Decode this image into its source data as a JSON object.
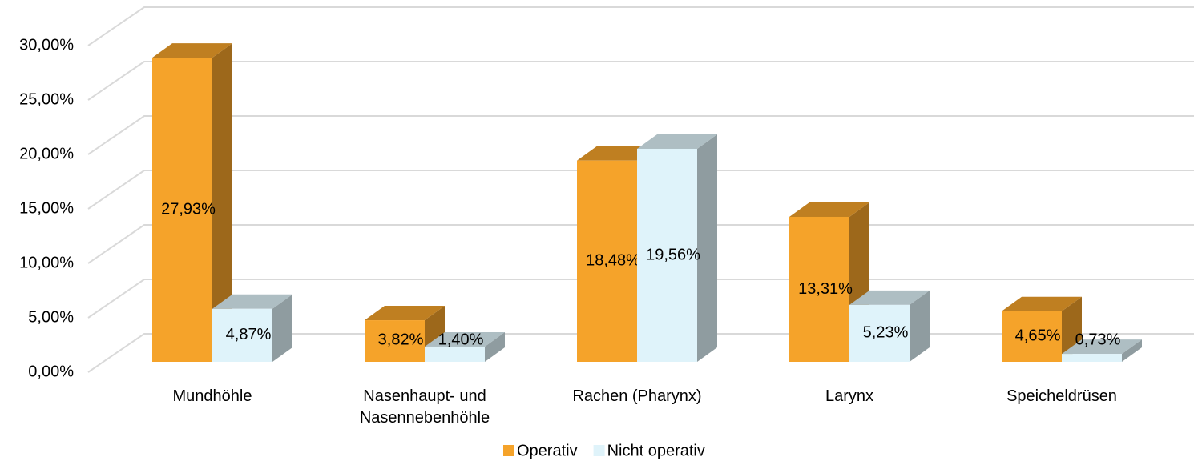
{
  "chart_data": {
    "type": "bar3d",
    "categories": [
      "Mundhöhle",
      "Nasenhaupt- und Nasennebenhöhle",
      "Rachen (Pharynx)",
      "Larynx",
      "Speicheldrüsen"
    ],
    "series": [
      {
        "name": "Operativ",
        "color": "#F5A32A",
        "values": [
          27.93,
          3.82,
          18.48,
          13.31,
          4.65
        ],
        "value_labels": [
          "27,93%",
          "3,82%",
          "18,48%",
          "13,31%",
          "4,65%"
        ]
      },
      {
        "name": "Nicht operativ",
        "color": "#DFF3FA",
        "values": [
          4.87,
          1.4,
          19.56,
          5.23,
          0.73
        ],
        "value_labels": [
          "4,87%",
          "1,40%",
          "19,56%",
          "5,23%",
          "0,73%"
        ]
      }
    ],
    "ylim": [
      0,
      30
    ],
    "yticks": [
      {
        "value": 0,
        "label": "0,00%"
      },
      {
        "value": 5,
        "label": "5,00%"
      },
      {
        "value": 10,
        "label": "10,00%"
      },
      {
        "value": 15,
        "label": "15,00%"
      },
      {
        "value": 20,
        "label": "20,00%"
      },
      {
        "value": 25,
        "label": "25,00%"
      },
      {
        "value": 30,
        "label": "30,00%"
      }
    ],
    "grid": true,
    "legend": "bottom"
  }
}
